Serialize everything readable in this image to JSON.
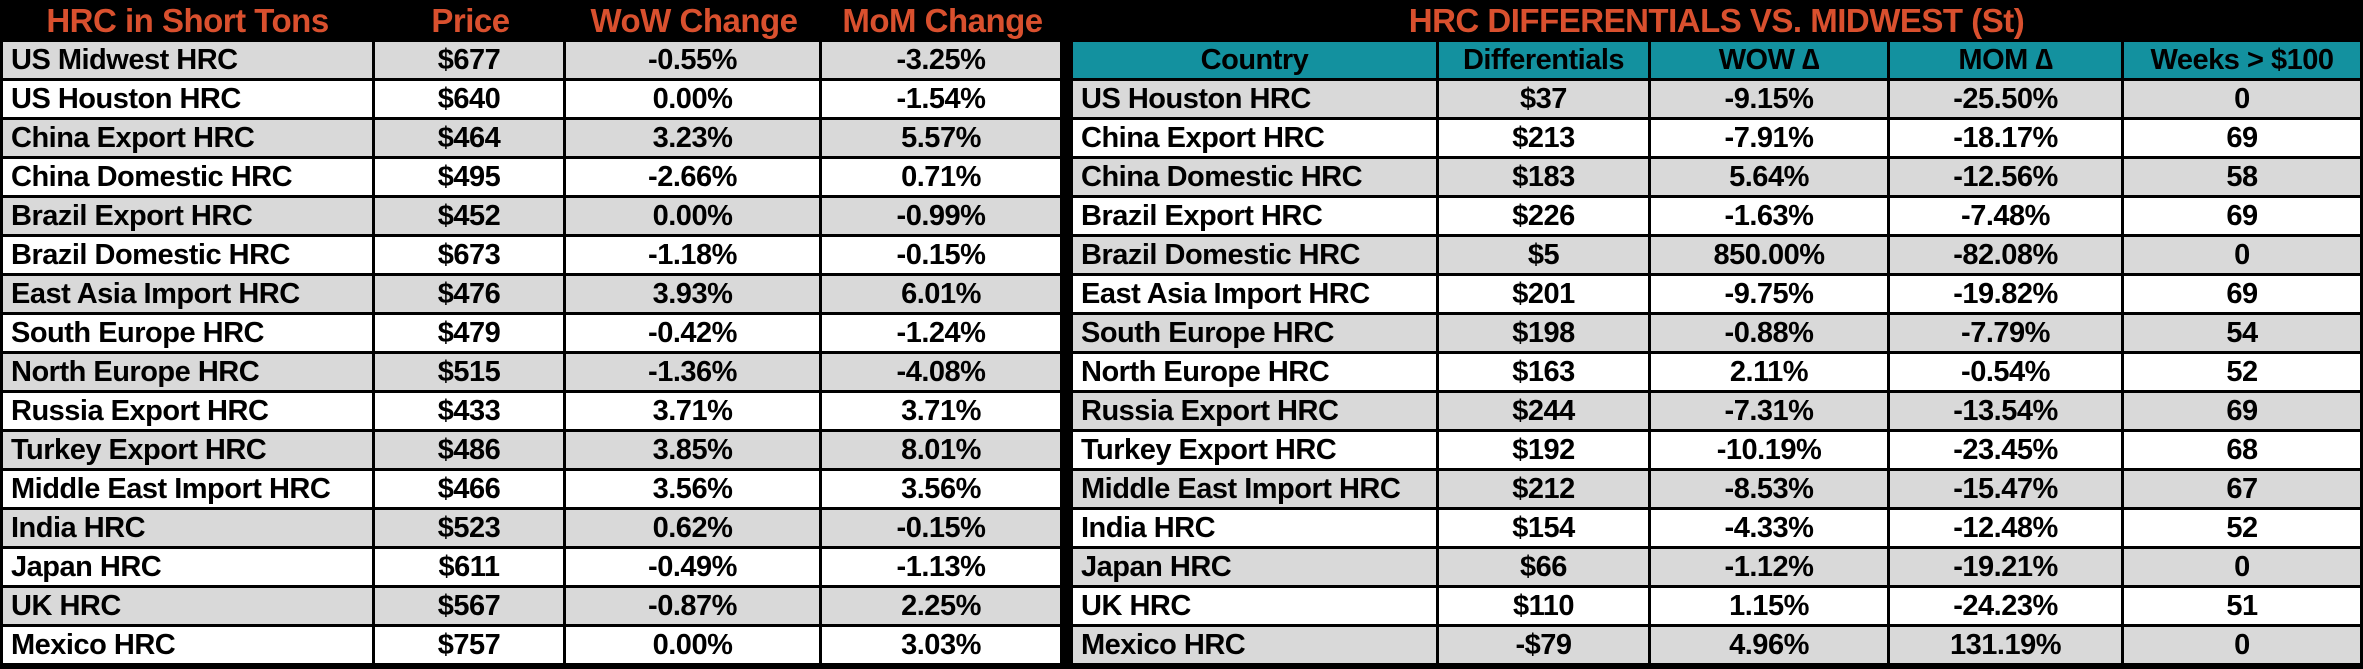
{
  "colors": {
    "background": "#000000",
    "header_text_orange": "#D9502E",
    "teal_header": "#13919F",
    "stripe_gray": "#D9D9D9",
    "row_white": "#FFFFFF",
    "cell_text": "#000000"
  },
  "chart_data": [
    {
      "type": "table",
      "title": "HRC in Short Tons",
      "columns": [
        "HRC in Short Tons",
        "Price",
        "WoW Change",
        "MoM Change"
      ],
      "rows": [
        [
          "US Midwest HRC",
          "$677",
          "-0.55%",
          "-3.25%"
        ],
        [
          "US Houston HRC",
          "$640",
          "0.00%",
          "-1.54%"
        ],
        [
          "China Export HRC",
          "$464",
          "3.23%",
          "5.57%"
        ],
        [
          "China Domestic HRC",
          "$495",
          "-2.66%",
          "0.71%"
        ],
        [
          "Brazil Export HRC",
          "$452",
          "0.00%",
          "-0.99%"
        ],
        [
          "Brazil Domestic HRC",
          "$673",
          "-1.18%",
          "-0.15%"
        ],
        [
          "East Asia Import HRC",
          "$476",
          "3.93%",
          "6.01%"
        ],
        [
          "South Europe HRC",
          "$479",
          "-0.42%",
          "-1.24%"
        ],
        [
          "North Europe HRC",
          "$515",
          "-1.36%",
          "-4.08%"
        ],
        [
          "Russia Export HRC",
          "$433",
          "3.71%",
          "3.71%"
        ],
        [
          "Turkey Export HRC",
          "$486",
          "3.85%",
          "8.01%"
        ],
        [
          "Middle East Import HRC",
          "$466",
          "3.56%",
          "3.56%"
        ],
        [
          "India HRC",
          "$523",
          "0.62%",
          "-0.15%"
        ],
        [
          "Japan HRC",
          "$611",
          "-0.49%",
          "-1.13%"
        ],
        [
          "UK HRC",
          "$567",
          "-0.87%",
          "2.25%"
        ],
        [
          "Mexico HRC",
          "$757",
          "0.00%",
          "3.03%"
        ]
      ],
      "layout": {
        "grid": true,
        "striped": true,
        "first_row_shade": "gray"
      }
    },
    {
      "type": "table",
      "title": "HRC DIFFERENTIALS VS. MIDWEST (St)",
      "columns": [
        "Country",
        "Differentials",
        "WOW ∆",
        "MOM ∆",
        "Weeks > $100"
      ],
      "rows": [
        [
          "US Houston HRC",
          "$37",
          "-9.15%",
          "-25.50%",
          "0"
        ],
        [
          "China Export HRC",
          "$213",
          "-7.91%",
          "-18.17%",
          "69"
        ],
        [
          "China Domestic HRC",
          "$183",
          "5.64%",
          "-12.56%",
          "58"
        ],
        [
          "Brazil Export HRC",
          "$226",
          "-1.63%",
          "-7.48%",
          "69"
        ],
        [
          "Brazil Domestic HRC",
          "$5",
          "850.00%",
          "-82.08%",
          "0"
        ],
        [
          "East Asia Import HRC",
          "$201",
          "-9.75%",
          "-19.82%",
          "69"
        ],
        [
          "South Europe HRC",
          "$198",
          "-0.88%",
          "-7.79%",
          "54"
        ],
        [
          "North Europe HRC",
          "$163",
          "2.11%",
          "-0.54%",
          "52"
        ],
        [
          "Russia Export HRC",
          "$244",
          "-7.31%",
          "-13.54%",
          "69"
        ],
        [
          "Turkey Export HRC",
          "$192",
          "-10.19%",
          "-23.45%",
          "68"
        ],
        [
          "Middle East Import HRC",
          "$212",
          "-8.53%",
          "-15.47%",
          "67"
        ],
        [
          "India HRC",
          "$154",
          "-4.33%",
          "-12.48%",
          "52"
        ],
        [
          "Japan HRC",
          "$66",
          "-1.12%",
          "-19.21%",
          "0"
        ],
        [
          "UK HRC",
          "$110",
          "1.15%",
          "-24.23%",
          "51"
        ],
        [
          "Mexico HRC",
          "-$79",
          "4.96%",
          "131.19%",
          "0"
        ]
      ],
      "layout": {
        "grid": true,
        "striped": true,
        "first_row_shade": "gray",
        "header_row_color": "#13919F"
      }
    }
  ]
}
